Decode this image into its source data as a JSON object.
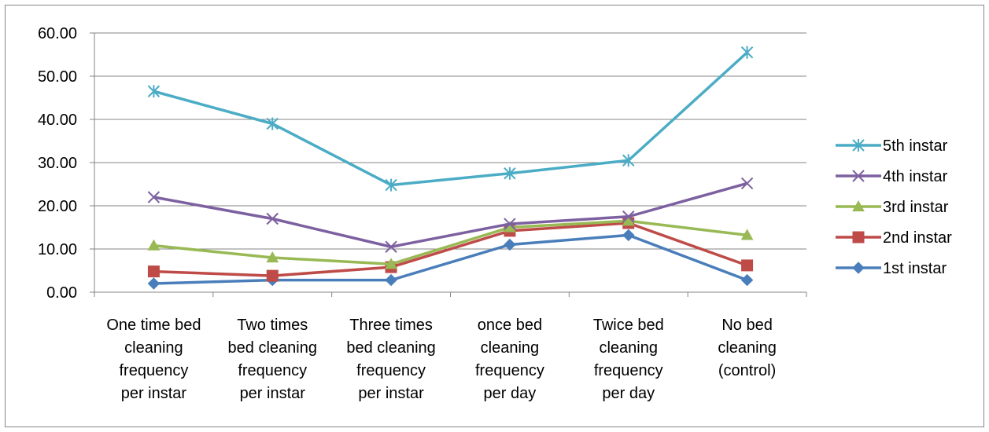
{
  "chart_data": {
    "type": "line",
    "title": "",
    "xlabel": "",
    "ylabel": "",
    "ylim": [
      0,
      60
    ],
    "yticks": [
      "0.00",
      "10.00",
      "20.00",
      "30.00",
      "40.00",
      "50.00",
      "60.00"
    ],
    "grid": true,
    "legend_position": "right",
    "categories": [
      [
        "One time bed",
        "cleaning",
        "frequency",
        "per instar"
      ],
      [
        "Two times",
        "bed cleaning",
        "frequency",
        "per instar"
      ],
      [
        "Three times",
        "bed cleaning",
        "frequency",
        "per instar"
      ],
      [
        "once bed",
        "cleaning",
        "frequency",
        "per day"
      ],
      [
        "Twice bed",
        "cleaning",
        "frequency",
        "per day"
      ],
      [
        "No bed",
        "cleaning",
        "(control)"
      ]
    ],
    "series": [
      {
        "name": "1st instar",
        "color": "#4a7ebb",
        "marker": "diamond",
        "values": [
          2.0,
          2.8,
          2.8,
          11.0,
          13.2,
          2.8
        ]
      },
      {
        "name": "2nd instar",
        "color": "#be4b48",
        "marker": "square",
        "values": [
          4.8,
          3.8,
          5.8,
          14.2,
          16.0,
          6.2
        ]
      },
      {
        "name": "3rd instar",
        "color": "#98b954",
        "marker": "triangle",
        "values": [
          10.8,
          8.0,
          6.5,
          15.0,
          16.5,
          13.2
        ]
      },
      {
        "name": "4th instar",
        "color": "#7d60a0",
        "marker": "x",
        "values": [
          22.0,
          17.0,
          10.5,
          15.8,
          17.5,
          25.2
        ]
      },
      {
        "name": "5th instar",
        "color": "#4bacc6",
        "marker": "star",
        "values": [
          46.5,
          39.0,
          24.8,
          27.5,
          30.5,
          55.5
        ]
      }
    ],
    "legend_order": [
      "5th instar",
      "4th instar",
      "3rd instar",
      "2nd instar",
      "1st instar"
    ]
  }
}
